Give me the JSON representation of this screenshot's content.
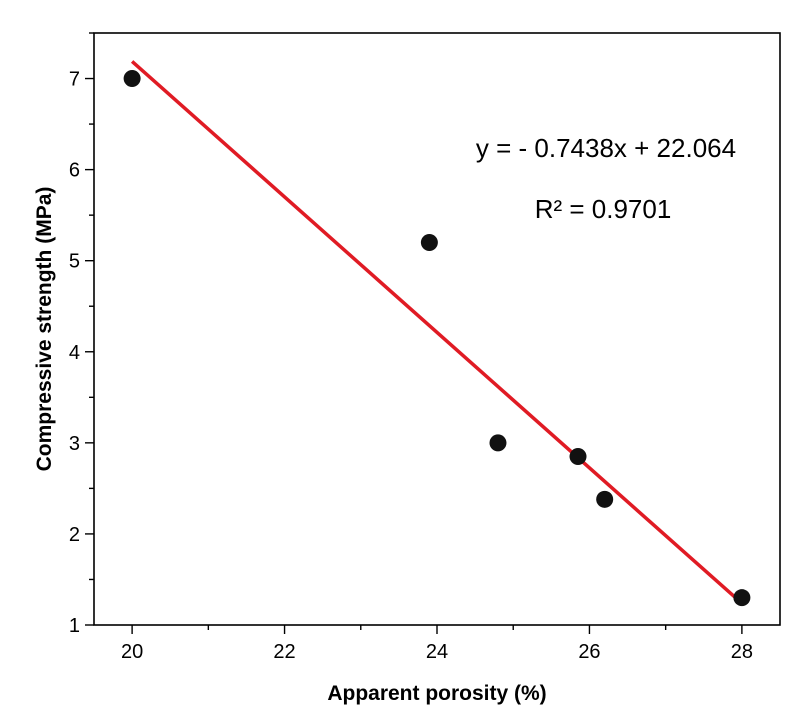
{
  "chart_data": {
    "type": "scatter",
    "xlabel": "Apparent porosity (%)",
    "ylabel": "Compressive strength (MPa)",
    "xlim": [
      19.5,
      28.5
    ],
    "ylim": [
      1,
      7.5
    ],
    "x_ticks": [
      20,
      22,
      24,
      26,
      28
    ],
    "y_ticks": [
      1,
      2,
      3,
      4,
      5,
      6,
      7
    ],
    "grid": false,
    "points": [
      {
        "x": 20.0,
        "y": 7.0
      },
      {
        "x": 23.9,
        "y": 5.2
      },
      {
        "x": 24.8,
        "y": 3.0
      },
      {
        "x": 25.85,
        "y": 2.85
      },
      {
        "x": 26.2,
        "y": 2.38
      },
      {
        "x": 28.0,
        "y": 1.3
      }
    ],
    "fit_line": {
      "slope": -0.7438,
      "intercept": 22.064,
      "x_range": [
        20.0,
        28.0
      ],
      "color": "#e01b24"
    },
    "annotations": {
      "equation": "y = - 0.7438x + 22.064",
      "r_squared": "R² = 0.9701"
    },
    "marker_color": "#111111"
  }
}
